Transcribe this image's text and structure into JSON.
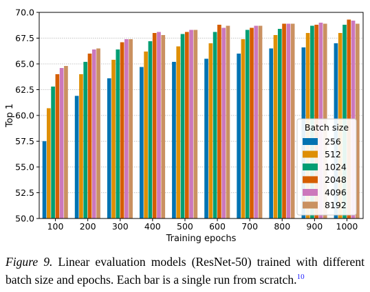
{
  "chart_data": {
    "type": "bar",
    "xlabel": "Training epochs",
    "ylabel": "Top 1",
    "ylim": [
      50.0,
      70.0
    ],
    "yticks": [
      "50.0",
      "52.5",
      "55.0",
      "57.5",
      "60.0",
      "62.5",
      "65.0",
      "67.5",
      "70.0"
    ],
    "categories": [
      "100",
      "200",
      "300",
      "400",
      "500",
      "600",
      "700",
      "800",
      "900",
      "1000"
    ],
    "legend_title": "Batch size",
    "legend_position": "lower-right",
    "grid": "horizontal",
    "series": [
      {
        "name": "256",
        "color": "#0173b2",
        "values": [
          57.5,
          61.9,
          63.6,
          64.7,
          65.2,
          65.5,
          66.0,
          66.5,
          66.6,
          67.0
        ]
      },
      {
        "name": "512",
        "color": "#de8f05",
        "values": [
          60.7,
          64.0,
          65.4,
          66.2,
          66.7,
          67.0,
          67.4,
          67.8,
          68.0,
          68.0
        ]
      },
      {
        "name": "1024",
        "color": "#029e73",
        "values": [
          62.8,
          65.2,
          66.4,
          67.2,
          67.9,
          68.1,
          68.3,
          68.4,
          68.7,
          68.8
        ]
      },
      {
        "name": "2048",
        "color": "#d55e00",
        "values": [
          64.0,
          66.0,
          67.1,
          68.0,
          68.1,
          68.8,
          68.5,
          68.9,
          68.8,
          69.3
        ]
      },
      {
        "name": "4096",
        "color": "#cc78bc",
        "values": [
          64.6,
          66.4,
          67.4,
          68.1,
          68.3,
          68.5,
          68.7,
          68.9,
          69.0,
          69.2
        ]
      },
      {
        "name": "8192",
        "color": "#ca9161",
        "values": [
          64.8,
          66.5,
          67.4,
          67.8,
          68.3,
          68.7,
          68.7,
          68.9,
          68.9,
          68.9
        ]
      }
    ]
  },
  "caption": {
    "label": "Figure 9.",
    "text": " Linear evaluation models (ResNet-50) trained with different batch size and epochs. Each bar is a single run from scratch.",
    "footnote": "10"
  }
}
